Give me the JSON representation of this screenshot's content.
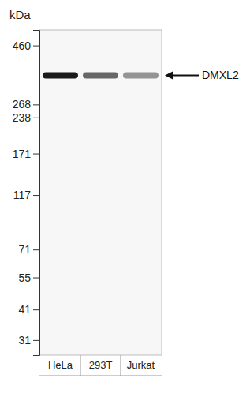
{
  "chart_data": {
    "type": "western_blot",
    "y_label": "kDa",
    "categories": [
      "HeLa",
      "293T",
      "Jurkat"
    ],
    "series": [
      {
        "name": "DMXL2",
        "values": [
          350,
          350,
          350
        ],
        "intensity": [
          1,
          0.65,
          0.45
        ]
      }
    ],
    "ylim": [
      27,
      530
    ],
    "yticks": [
      460,
      268,
      238,
      171,
      117,
      71,
      55,
      41,
      31
    ],
    "log": "y",
    "color": "#1a1a1a"
  }
}
